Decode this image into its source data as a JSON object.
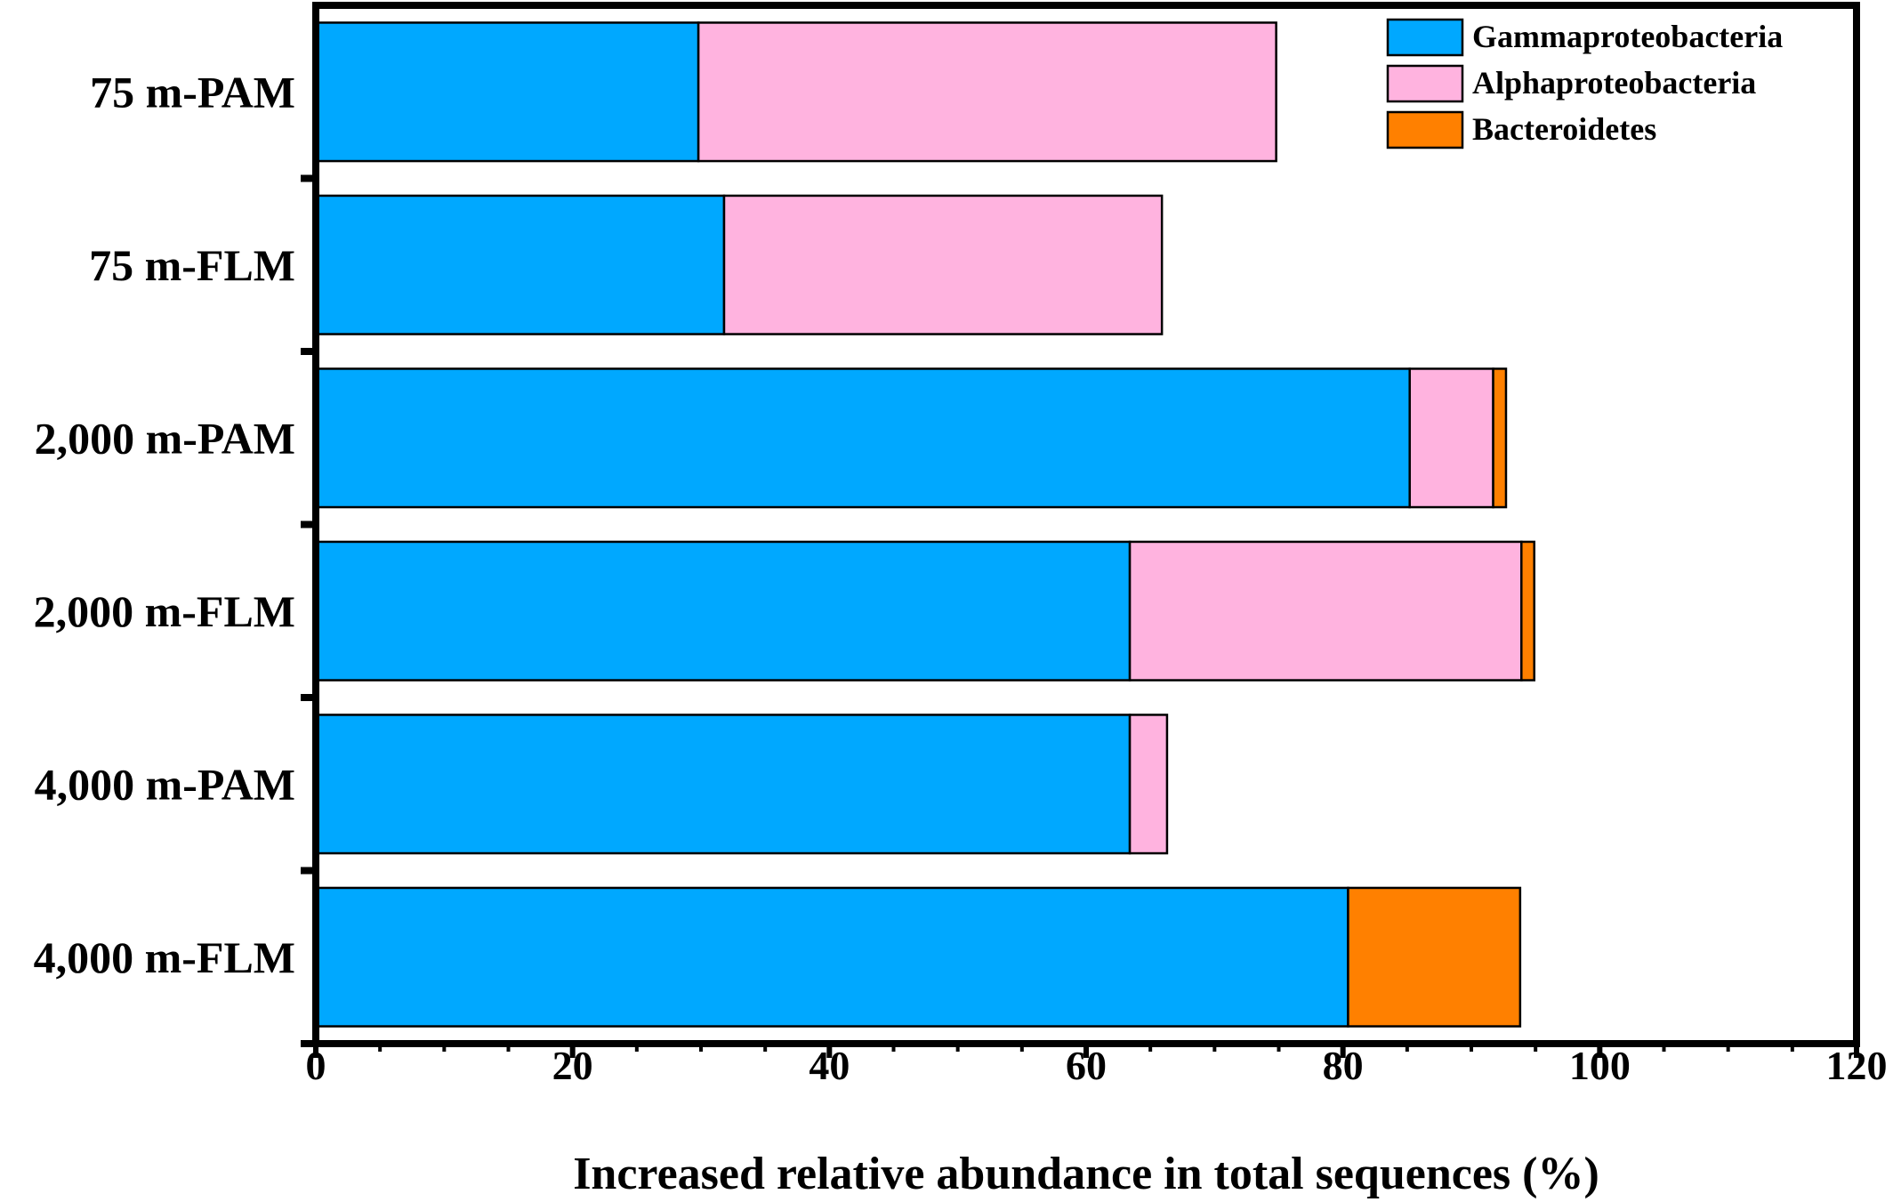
{
  "chart_data": {
    "type": "bar",
    "orientation": "horizontal",
    "stacked": true,
    "categories": [
      "75 m-PAM",
      "75 m-FLM",
      "2,000 m-PAM",
      "2,000 m-FLM",
      "4,000 m-PAM",
      "4,000 m-FLM"
    ],
    "series": [
      {
        "name": "Gammaproteobacteria",
        "color": "#00a8ff",
        "values": [
          29.8,
          31.8,
          85.2,
          63.4,
          63.4,
          80.4
        ]
      },
      {
        "name": "Alphaproteobacteria",
        "color": "#ffb3df",
        "values": [
          45.0,
          34.1,
          6.5,
          30.5,
          2.9,
          0
        ]
      },
      {
        "name": "Bacteroidetes",
        "color": "#ff8000",
        "values": [
          0,
          0,
          1.0,
          1.0,
          0,
          13.4
        ]
      }
    ],
    "xlabel": "Increased relative abundance in total sequences (%)",
    "ylabel": "",
    "xlim": [
      0,
      120
    ],
    "xticks": [
      "0",
      "20",
      "40",
      "60",
      "80",
      "100",
      "120"
    ],
    "grid": false,
    "legend_position": "top-right"
  }
}
